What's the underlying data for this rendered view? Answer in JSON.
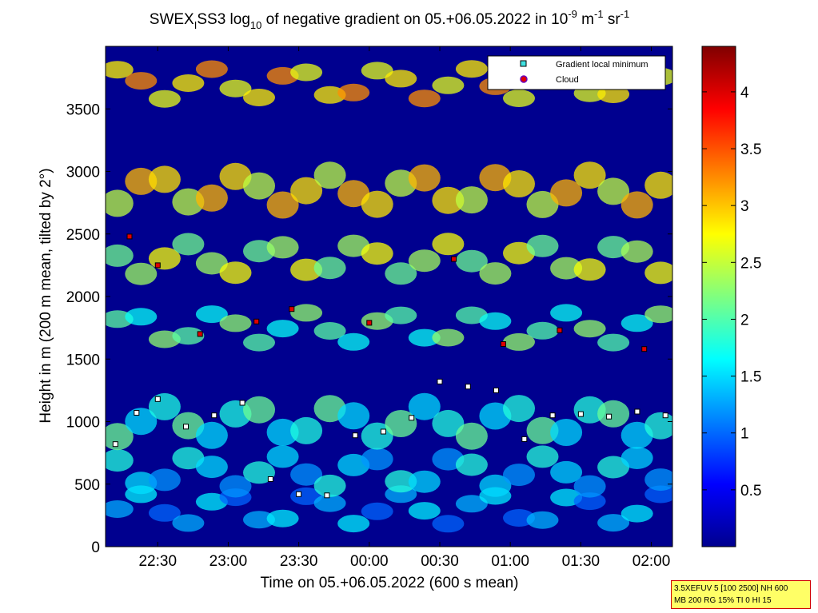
{
  "chart_data": {
    "type": "heatmap",
    "title": {
      "p1": "SWEX",
      "p2": "I",
      "p3": "SS3 log",
      "p4": "10",
      "p5": " of negative gradient on 05.+06.05.2022 in 10",
      "p6": "-9",
      "p7": " m",
      "p8": "-1",
      "p9": " sr",
      "p10": "-1"
    },
    "xlabel": "Time on 05.+06.05.2022 (600 s mean)",
    "ylabel": "Height in m (200 m mean, tilted by 2°)",
    "x_range_hours": [
      22.13,
      26.15
    ],
    "xlim": [
      "22:08",
      "02:09"
    ],
    "ylim": [
      0,
      4000
    ],
    "x_ticks": [
      {
        "value": 22.5,
        "label": "22:30"
      },
      {
        "value": 23.0,
        "label": "23:00"
      },
      {
        "value": 23.5,
        "label": "23:30"
      },
      {
        "value": 24.0,
        "label": "00:00"
      },
      {
        "value": 24.5,
        "label": "00:30"
      },
      {
        "value": 25.0,
        "label": "01:00"
      },
      {
        "value": 25.5,
        "label": "01:30"
      },
      {
        "value": 26.0,
        "label": "02:00"
      }
    ],
    "y_ticks": [
      {
        "value": 0,
        "label": "0"
      },
      {
        "value": 500,
        "label": "500"
      },
      {
        "value": 1000,
        "label": "1000"
      },
      {
        "value": 1500,
        "label": "1500"
      },
      {
        "value": 2000,
        "label": "2000"
      },
      {
        "value": 2500,
        "label": "2500"
      },
      {
        "value": 3000,
        "label": "3000"
      },
      {
        "value": 3500,
        "label": "3500"
      }
    ],
    "colorbar": {
      "min": 0,
      "max": 4.4,
      "colormap": "jet",
      "ticks": [
        {
          "value": 0.5,
          "label": "0.5"
        },
        {
          "value": 1,
          "label": "1"
        },
        {
          "value": 1.5,
          "label": "1.5"
        },
        {
          "value": 2,
          "label": "2"
        },
        {
          "value": 2.5,
          "label": "2.5"
        },
        {
          "value": 3,
          "label": "3"
        },
        {
          "value": 3.5,
          "label": "3.5"
        },
        {
          "value": 4,
          "label": "4"
        }
      ]
    },
    "legend": {
      "placement": "top-right",
      "entries": [
        {
          "label": "Gradient local minimum",
          "marker": "square",
          "color": "#40e0e0"
        },
        {
          "label": "Cloud",
          "marker": "circle",
          "color": "#e00000",
          "edge": "#6a00c0"
        }
      ]
    },
    "series": [
      {
        "name": "Gradient local minimum",
        "x_hours": [
          22.2,
          22.35,
          22.5,
          22.7,
          22.9,
          23.1,
          23.3,
          23.5,
          23.7,
          23.9,
          24.1,
          24.3,
          24.5,
          24.7,
          24.9,
          25.1,
          25.3,
          25.5,
          25.7,
          25.9,
          26.1
        ],
        "y_m": [
          820,
          1070,
          1180,
          960,
          1050,
          1150,
          540,
          420,
          410,
          890,
          920,
          1030,
          1320,
          1280,
          1250,
          860,
          1050,
          1060,
          1040,
          1080,
          1050
        ]
      },
      {
        "name": "Cloud",
        "x_hours": [
          22.3,
          22.5,
          22.8,
          23.2,
          23.45,
          24.0,
          24.6,
          24.95,
          25.35,
          25.95
        ],
        "y_m": [
          2480,
          2250,
          1700,
          1800,
          1900,
          1790,
          2300,
          1620,
          1730,
          1580
        ]
      }
    ],
    "heatmap_bands": [
      {
        "height_m": 300,
        "level": 1.3
      },
      {
        "height_m": 600,
        "level": 1.5
      },
      {
        "height_m": 1000,
        "level": 1.8
      },
      {
        "height_m": 1750,
        "level": 2.0
      },
      {
        "height_m": 2300,
        "level": 2.4
      },
      {
        "height_m": 2850,
        "level": 2.8
      },
      {
        "height_m": 3700,
        "level": 2.9
      }
    ]
  },
  "note": {
    "line1": "3.5XEFUV 5 [100 2500] NH 600",
    "line2": "MB 200 RG 15% TI 0 HI 15"
  }
}
